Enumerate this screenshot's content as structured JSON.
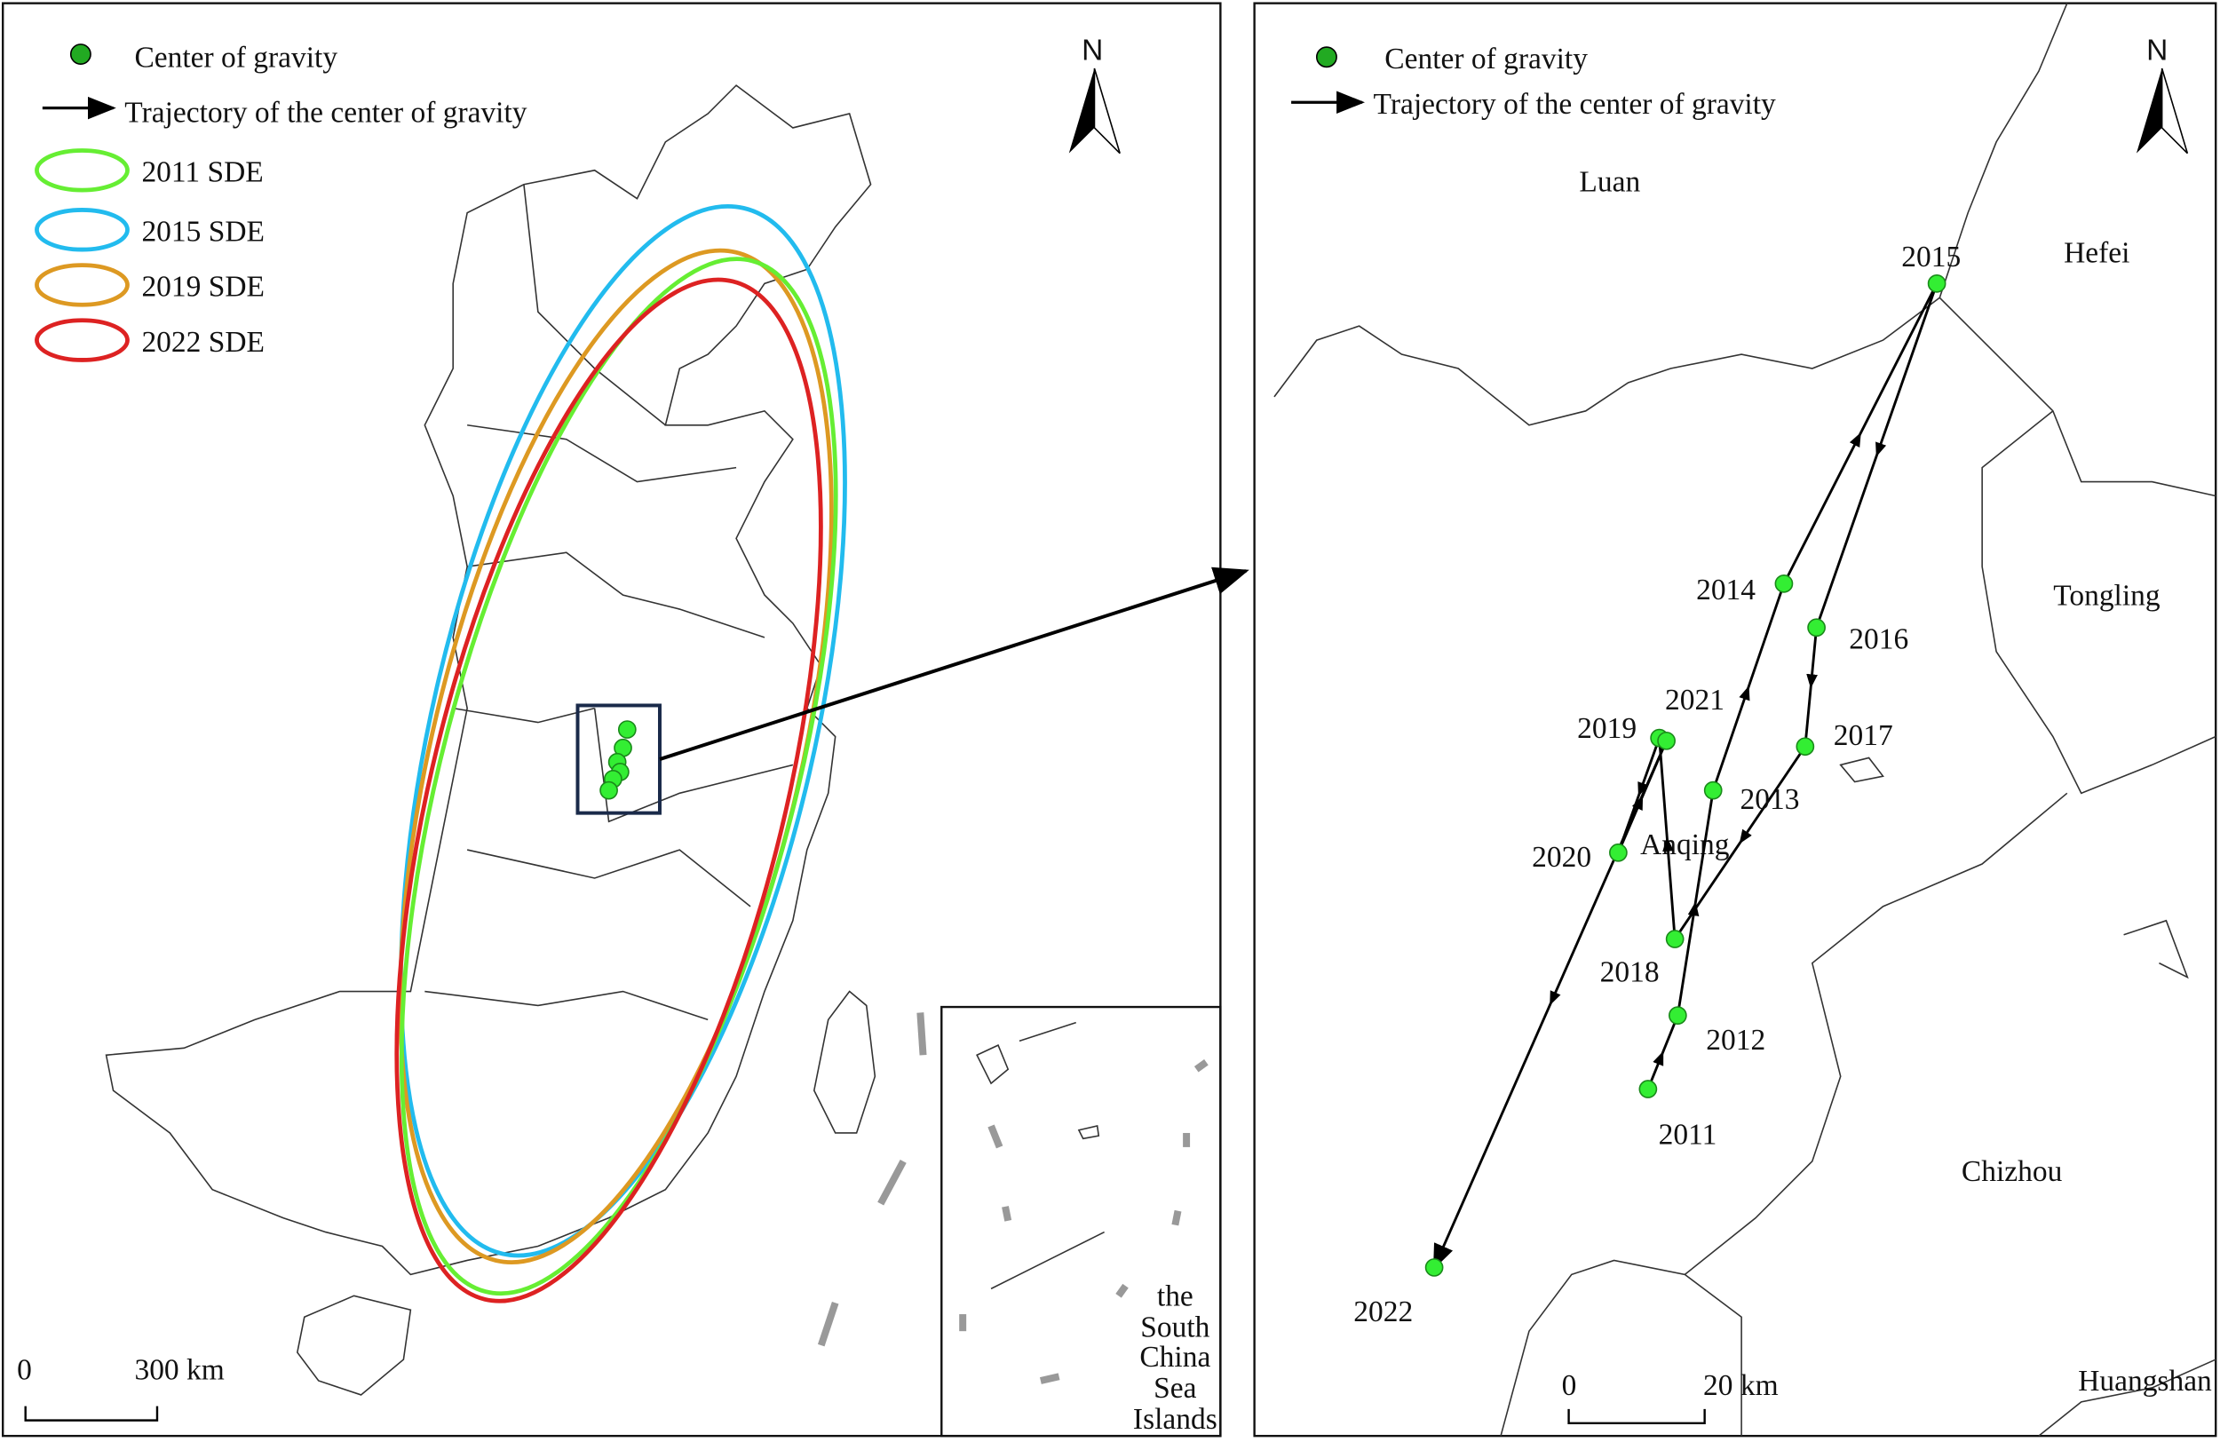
{
  "left_panel": {
    "legend": {
      "center": "Center of gravity",
      "trajectory": "Trajectory of the center of gravity",
      "ellipses": [
        {
          "label": "2011 SDE",
          "color": "#66ee33"
        },
        {
          "label": "2015 SDE",
          "color": "#22bbee"
        },
        {
          "label": "2019 SDE",
          "color": "#dd9922"
        },
        {
          "label": "2022 SDE",
          "color": "#dd2222"
        }
      ]
    },
    "north": "N",
    "scale": {
      "start": "0",
      "end": "300 km"
    },
    "inset_label": [
      "the",
      "South",
      "China",
      "Sea",
      "Islands"
    ]
  },
  "right_panel": {
    "legend": {
      "center": "Center of gravity",
      "trajectory": "Trajectory of the center of gravity"
    },
    "north": "N",
    "places": [
      "Luan",
      "Hefei",
      "Tongling",
      "Anqing",
      "Chizhou",
      "Huangshan"
    ],
    "points": [
      "2011",
      "2012",
      "2013",
      "2014",
      "2015",
      "2016",
      "2017",
      "2018",
      "2019",
      "2020",
      "2021",
      "2022"
    ],
    "scale": {
      "start": "0",
      "end": "20 km"
    }
  }
}
